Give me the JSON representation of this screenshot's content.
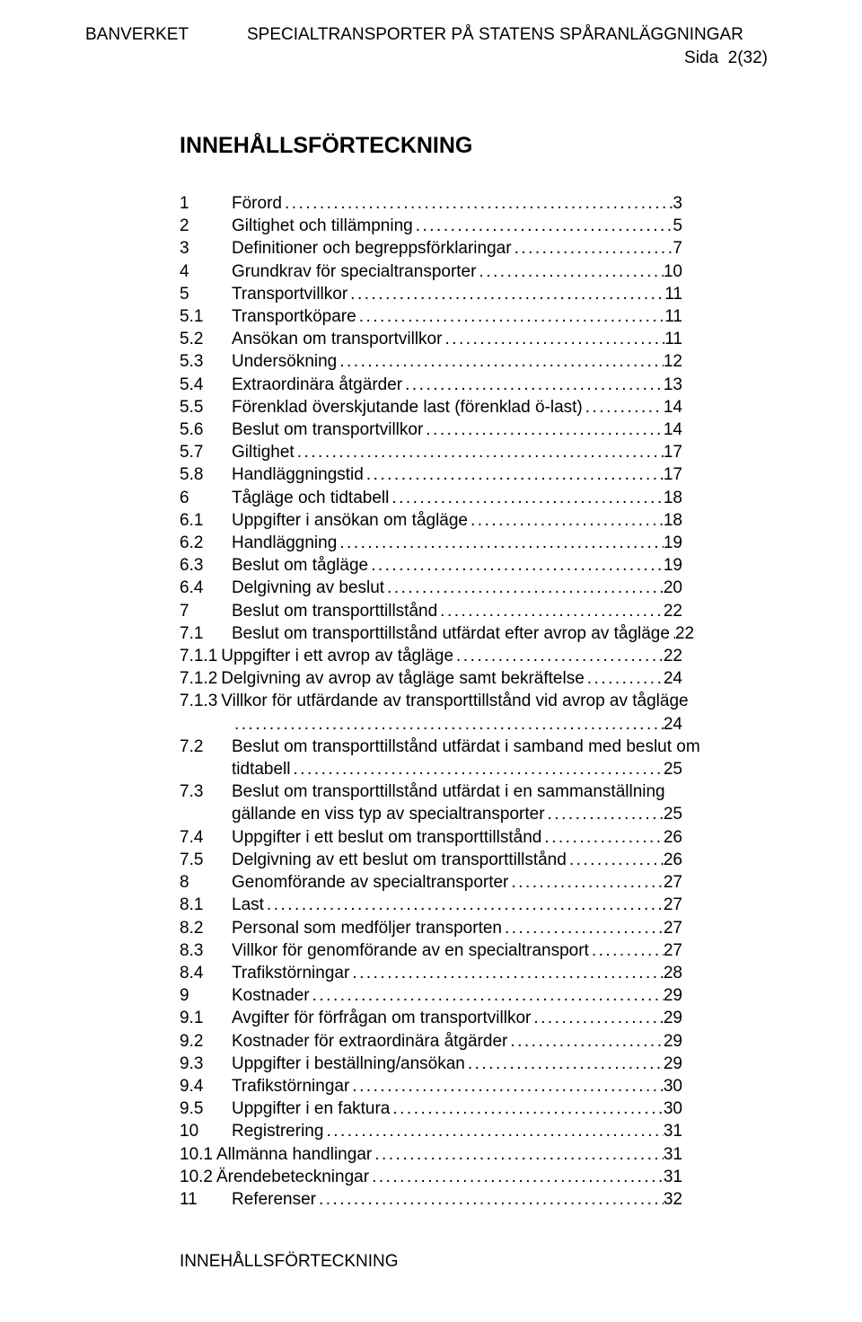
{
  "header": {
    "left": "BANVERKET",
    "right": "SPECIALTRANSPORTER PÅ STATENS SPÅRANLÄGGNINGAR",
    "page_label": "Sida",
    "page_value": "2(32)"
  },
  "title": "INNEHÅLLSFÖRTECKNING",
  "footer": "INNEHÅLLSFÖRTECKNING",
  "toc": [
    {
      "n": "1",
      "t": "Förord",
      "p": "3"
    },
    {
      "n": "2",
      "t": "Giltighet och tillämpning",
      "p": "5"
    },
    {
      "n": "3",
      "t": "Definitioner och begreppsförklaringar",
      "p": "7"
    },
    {
      "n": "4",
      "t": "Grundkrav för specialtransporter",
      "p": "10"
    },
    {
      "n": "5",
      "t": "Transportvillkor",
      "p": "11"
    },
    {
      "n": "5.1",
      "t": "Transportköpare",
      "p": "11"
    },
    {
      "n": "5.2",
      "t": "Ansökan om transportvillkor",
      "p": "11"
    },
    {
      "n": "5.3",
      "t": "Undersökning",
      "p": "12"
    },
    {
      "n": "5.4",
      "t": "Extraordinära åtgärder",
      "p": "13"
    },
    {
      "n": "5.5",
      "t": "Förenklad överskjutande last (förenklad ö-last)",
      "p": "14"
    },
    {
      "n": "5.6",
      "t": "Beslut om transportvillkor",
      "p": "14"
    },
    {
      "n": "5.7",
      "t": "Giltighet",
      "p": "17"
    },
    {
      "n": "5.8",
      "t": "Handläggningstid",
      "p": "17"
    },
    {
      "n": "6",
      "t": "Tågläge och tidtabell",
      "p": "18"
    },
    {
      "n": "6.1",
      "t": "Uppgifter i ansökan om tågläge",
      "p": "18"
    },
    {
      "n": "6.2",
      "t": "Handläggning",
      "p": "19"
    },
    {
      "n": "6.3",
      "t": "Beslut om tågläge",
      "p": "19"
    },
    {
      "n": "6.4",
      "t": "Delgivning av beslut",
      "p": "20"
    },
    {
      "n": "7",
      "t": "Beslut om transporttillstånd",
      "p": "22"
    },
    {
      "n": "7.1",
      "t": "Beslut om transporttillstånd utfärdat efter avrop av tågläge",
      "p": "22"
    },
    {
      "n": "7.1.1",
      "t": "Uppgifter i ett avrop av tågläge",
      "p": "22",
      "nonum_gap": true
    },
    {
      "n": "7.1.2",
      "t": "Delgivning av avrop av tågläge samt bekräftelse",
      "p": "24",
      "nonum_gap": true
    },
    {
      "n": "7.1.3",
      "t": "Villkor för utfärdande av transporttillstånd vid avrop av tågläge",
      "p": "24",
      "wrap": true,
      "nonum_gap": true
    },
    {
      "n": "7.2",
      "t": "Beslut om transporttillstånd utfärdat i samband med beslut om",
      "t2": "tidtabell",
      "p": "25",
      "wrap": true
    },
    {
      "n": "7.3",
      "t": "Beslut om transporttillstånd utfärdat i en sammanställning",
      "t2": "gällande en viss typ av specialtransporter",
      "p": "25",
      "wrap": true
    },
    {
      "n": "7.4",
      "t": "Uppgifter i ett beslut om transporttillstånd",
      "p": "26"
    },
    {
      "n": "7.5",
      "t": "Delgivning av ett beslut om transporttillstånd",
      "p": "26"
    },
    {
      "n": "8",
      "t": "Genomförande av specialtransporter",
      "p": "27"
    },
    {
      "n": "8.1",
      "t": "Last",
      "p": "27"
    },
    {
      "n": "8.2",
      "t": "Personal som medföljer transporten",
      "p": "27"
    },
    {
      "n": "8.3",
      "t": "Villkor för genomförande av en specialtransport",
      "p": "27"
    },
    {
      "n": "8.4",
      "t": "Trafikstörningar",
      "p": "28"
    },
    {
      "n": "9",
      "t": "Kostnader",
      "p": "29"
    },
    {
      "n": "9.1",
      "t": "Avgifter för förfrågan om transportvillkor",
      "p": "29"
    },
    {
      "n": "9.2",
      "t": "Kostnader för extraordinära åtgärder",
      "p": "29"
    },
    {
      "n": "9.3",
      "t": "Uppgifter i beställning/ansökan",
      "p": "29"
    },
    {
      "n": "9.4",
      "t": "Trafikstörningar",
      "p": "30"
    },
    {
      "n": "9.5",
      "t": "Uppgifter i en faktura",
      "p": "30"
    },
    {
      "n": "10",
      "t": "Registrering",
      "p": "31"
    },
    {
      "n": "10.1",
      "t": "Allmänna handlingar",
      "p": "31",
      "nonum_gap": true
    },
    {
      "n": "10.2",
      "t": "Ärendebeteckningar",
      "p": "31",
      "nonum_gap": true
    },
    {
      "n": "11",
      "t": "Referenser",
      "p": "32"
    }
  ]
}
